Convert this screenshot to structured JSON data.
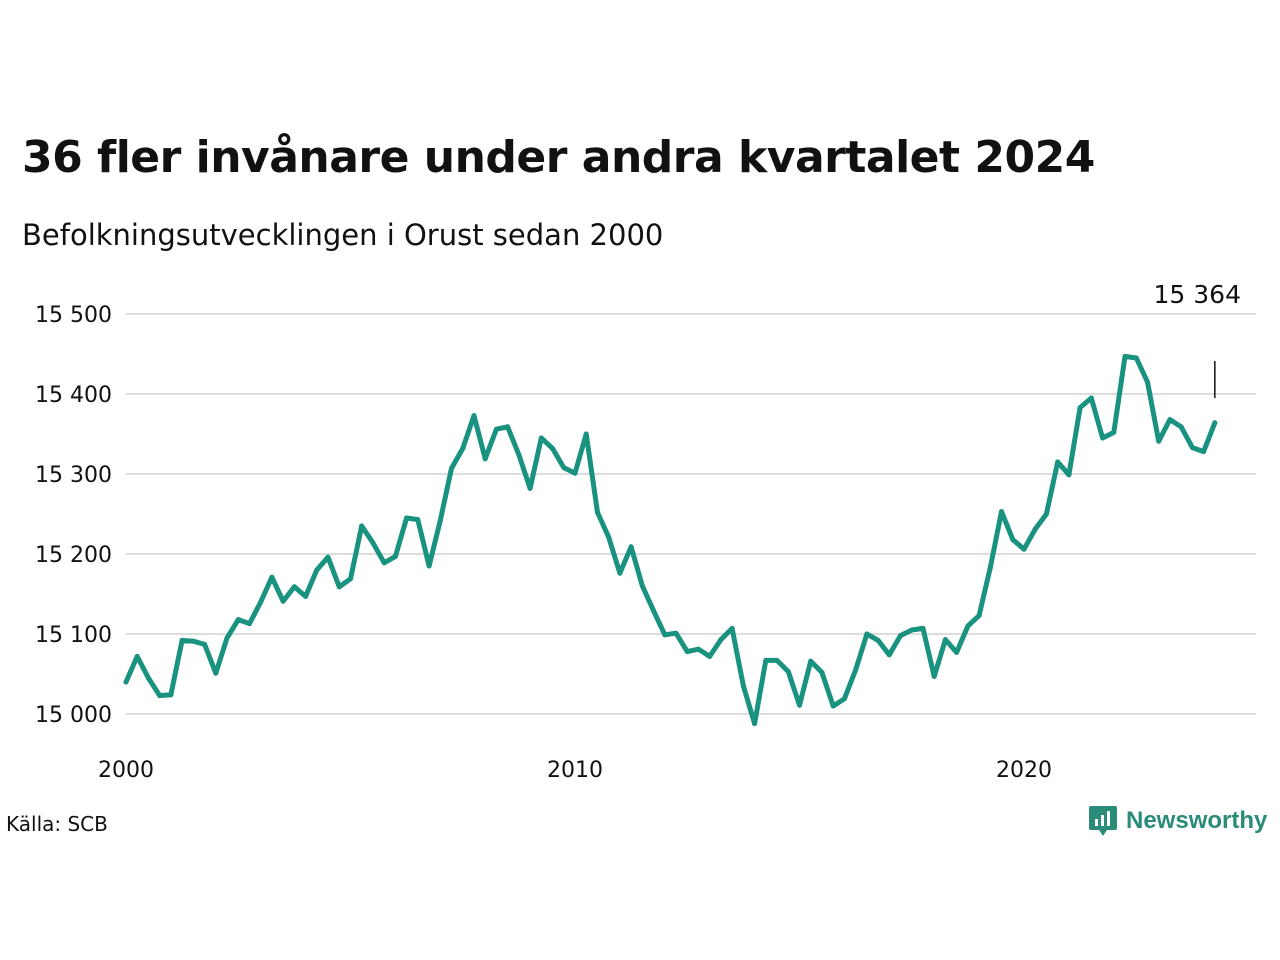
{
  "title": "36 fler invånare under andra kvartalet 2024",
  "subtitle": "Befolkningsutvecklingen i Orust sedan 2000",
  "source": "Källa: SCB",
  "brand": {
    "name": "Newsworthy",
    "icon": "newsworthy-logo-icon",
    "color": "#2a8c78"
  },
  "chart_data": {
    "type": "line",
    "title": "36 fler invånare under andra kvartalet 2024",
    "subtitle": "Befolkningsutvecklingen i Orust sedan 2000",
    "xlabel": "",
    "ylabel": "",
    "x_ticks": [
      2000,
      2010,
      2020
    ],
    "y_ticks": [
      15000,
      15100,
      15200,
      15300,
      15400,
      15500
    ],
    "y_tick_labels": [
      "15 000",
      "15 100",
      "15 200",
      "15 300",
      "15 400",
      "15 500"
    ],
    "xlim": [
      2000,
      2025.25
    ],
    "ylim": [
      14985,
      15512
    ],
    "grid": "horizontal",
    "line_color": "#1a9280",
    "end_label": "15 364",
    "series": [
      {
        "x": [
          2000.0,
          2000.25,
          2000.5,
          2000.75,
          2001.0,
          2001.25,
          2001.5,
          2001.75,
          2002.0,
          2002.25,
          2002.5,
          2002.75,
          2003.0,
          2003.25,
          2003.5,
          2003.75,
          2004.0,
          2004.25,
          2004.5,
          2004.75,
          2005.0,
          2005.25,
          2005.5,
          2005.75,
          2006.0,
          2006.25,
          2006.5,
          2006.75,
          2007.0,
          2007.25,
          2007.5,
          2007.75,
          2008.0,
          2008.25,
          2008.5,
          2008.75,
          2009.0,
          2009.25,
          2009.5,
          2009.75,
          2010.0,
          2010.25,
          2010.5,
          2010.75,
          2011.0,
          2011.25,
          2011.5,
          2011.75,
          2012.0,
          2012.25,
          2012.5,
          2012.75,
          2013.0,
          2013.25,
          2013.5,
          2013.75,
          2014.0,
          2014.25,
          2014.5,
          2014.75,
          2015.0,
          2015.25,
          2015.5,
          2015.75,
          2016.0,
          2016.25,
          2016.5,
          2016.75,
          2017.0,
          2017.25,
          2017.5,
          2017.75,
          2018.0,
          2018.25,
          2018.5,
          2018.75,
          2019.0,
          2019.25,
          2019.5,
          2019.75,
          2020.0,
          2020.25,
          2020.5,
          2020.75,
          2021.0,
          2021.25,
          2021.5,
          2021.75,
          2022.0,
          2022.25,
          2022.5,
          2022.75,
          2023.0,
          2023.25,
          2023.5,
          2023.75,
          2024.0,
          2024.25
        ],
        "values": [
          15040,
          15072,
          15045,
          15023,
          15024,
          15092,
          15091,
          15087,
          15051,
          15095,
          15118,
          15113,
          15140,
          15171,
          15141,
          15159,
          15147,
          15180,
          15196,
          15159,
          15169,
          15235,
          15214,
          15189,
          15197,
          15245,
          15243,
          15185,
          15242,
          15307,
          15332,
          15373,
          15319,
          15356,
          15359,
          15324,
          15282,
          15345,
          15332,
          15308,
          15301,
          15350,
          15252,
          15221,
          15176,
          15209,
          15160,
          15129,
          15099,
          15101,
          15078,
          15081,
          15072,
          15093,
          15107,
          15035,
          14988,
          15067,
          15067,
          15053,
          15011,
          15066,
          15052,
          15010,
          15019,
          15055,
          15100,
          15092,
          15074,
          15098,
          15105,
          15107,
          15047,
          15093,
          15077,
          15110,
          15123,
          15183,
          15253,
          15218,
          15206,
          15231,
          15250,
          15315,
          15299,
          15383,
          15395,
          15345,
          15352,
          15447,
          15445,
          15415,
          15341,
          15368,
          15359,
          15333,
          15328,
          15364
        ]
      }
    ]
  }
}
